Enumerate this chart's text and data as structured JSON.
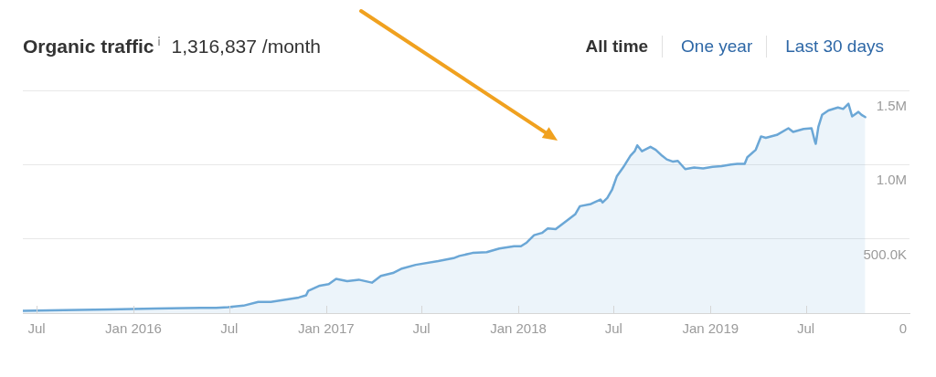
{
  "chart_data": {
    "type": "area",
    "title": "Organic traffic",
    "subtitle": "1,316,837 /month",
    "annotations": [
      "All time",
      "One year",
      "Last 30 days"
    ],
    "x": [
      "2015-06-05",
      "2015-08-22",
      "2015-11-16",
      "2016-02-11",
      "2016-05-08",
      "2016-06-06",
      "2016-06-29",
      "2016-07-28",
      "2016-08-25",
      "2016-09-18",
      "2016-10-16",
      "2016-11-10",
      "2016-11-24",
      "2016-11-28",
      "2016-12-20",
      "2017-01-06",
      "2017-01-20",
      "2017-02-10",
      "2017-03-04",
      "2017-03-29",
      "2017-04-15",
      "2017-05-08",
      "2017-05-25",
      "2017-06-20",
      "2017-08-02",
      "2017-08-31",
      "2017-09-11",
      "2017-10-06",
      "2017-11-02",
      "2017-11-26",
      "2017-12-24",
      "2018-01-06",
      "2018-01-17",
      "2018-01-31",
      "2018-02-15",
      "2018-02-26",
      "2018-03-13",
      "2018-04-02",
      "2018-04-19",
      "2018-04-28",
      "2018-05-19",
      "2018-06-06",
      "2018-06-10",
      "2018-06-19",
      "2018-06-28",
      "2018-07-07",
      "2018-07-19",
      "2018-08-02",
      "2018-08-10",
      "2018-08-15",
      "2018-08-24",
      "2018-09-09",
      "2018-09-19",
      "2018-10-01",
      "2018-10-10",
      "2018-10-22",
      "2018-10-31",
      "2018-11-14",
      "2018-12-01",
      "2018-12-18",
      "2019-01-05",
      "2019-01-22",
      "2019-02-09",
      "2019-02-21",
      "2019-03-07",
      "2019-03-12",
      "2019-03-28",
      "2019-04-07",
      "2019-04-16",
      "2019-05-07",
      "2019-05-29",
      "2019-06-07",
      "2019-06-27",
      "2019-07-12",
      "2019-07-18",
      "2019-07-20",
      "2019-07-25",
      "2019-08-01",
      "2019-08-13",
      "2019-08-31",
      "2019-09-10",
      "2019-09-20",
      "2019-09-27",
      "2019-10-05",
      "2019-10-09",
      "2019-10-15",
      "2019-10-22"
    ],
    "values": [
      15000,
      20000,
      25000,
      30000,
      35000,
      35000,
      40000,
      50000,
      75000,
      75000,
      90000,
      105000,
      120000,
      150000,
      185000,
      195000,
      230000,
      215000,
      225000,
      205000,
      250000,
      270000,
      300000,
      325000,
      350000,
      370000,
      385000,
      405000,
      410000,
      435000,
      450000,
      450000,
      475000,
      525000,
      540000,
      570000,
      565000,
      620000,
      665000,
      720000,
      735000,
      765000,
      745000,
      775000,
      830000,
      920000,
      980000,
      1060000,
      1090000,
      1130000,
      1090000,
      1120000,
      1100000,
      1060000,
      1035000,
      1020000,
      1025000,
      970000,
      980000,
      975000,
      985000,
      990000,
      1000000,
      1005000,
      1005000,
      1050000,
      1100000,
      1190000,
      1180000,
      1200000,
      1245000,
      1220000,
      1240000,
      1245000,
      1160000,
      1140000,
      1255000,
      1335000,
      1365000,
      1385000,
      1375000,
      1410000,
      1325000,
      1345000,
      1355000,
      1335000,
      1320000
    ],
    "color": "#6ba7d6",
    "xlim": [
      "2015-06-05",
      "2020-01-14"
    ],
    "xticks": [
      {
        "value": "2015-07-01",
        "label": "Jul"
      },
      {
        "value": "2016-01-01",
        "label": "Jan 2016"
      },
      {
        "value": "2016-07-01",
        "label": "Jul"
      },
      {
        "value": "2017-01-01",
        "label": "Jan 2017"
      },
      {
        "value": "2017-07-01",
        "label": "Jul"
      },
      {
        "value": "2018-01-01",
        "label": "Jan 2018"
      },
      {
        "value": "2018-07-01",
        "label": "Jul"
      },
      {
        "value": "2019-01-01",
        "label": "Jan 2019"
      },
      {
        "value": "2019-07-01",
        "label": "Jul"
      }
    ],
    "ylim": [
      0,
      1500000
    ],
    "yticks": [
      0,
      {
        "value": 500000,
        "label": "500.0K"
      },
      {
        "value": 1000000,
        "label": "1.0M"
      },
      {
        "value": 1500000,
        "label": "1.5M"
      }
    ],
    "grid": "y"
  }
}
